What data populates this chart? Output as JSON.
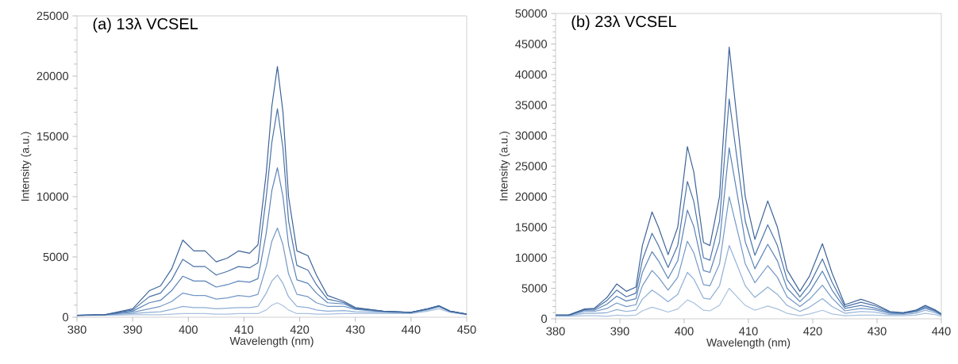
{
  "chart_data": [
    {
      "type": "line",
      "title": "(a) 13λ VCSEL",
      "xlabel": "Wavelength (nm)",
      "ylabel": "Intensity (a.u.)",
      "xlim": [
        380,
        450
      ],
      "ylim": [
        0,
        25000
      ],
      "xticks": [
        380,
        390,
        400,
        410,
        420,
        430,
        440,
        450
      ],
      "yticks": [
        0,
        5000,
        10000,
        15000,
        20000,
        25000
      ],
      "x": [
        380,
        385,
        390,
        393,
        395,
        397,
        399,
        401,
        403,
        405,
        407,
        409,
        411,
        412.5,
        414,
        415,
        416,
        417,
        418,
        419.5,
        421.5,
        423,
        425,
        428,
        430,
        435,
        440,
        443,
        445,
        447,
        450
      ],
      "series": [
        {
          "color": "#a9c1de",
          "values": [
            120,
            150,
            200,
            200,
            200,
            250,
            300,
            300,
            300,
            250,
            260,
            300,
            300,
            300,
            600,
            1000,
            1200,
            950,
            600,
            300,
            300,
            250,
            250,
            300,
            300,
            300,
            300,
            500,
            700,
            400,
            200
          ]
        },
        {
          "color": "#8eaed4",
          "values": [
            150,
            180,
            300,
            400,
            450,
            650,
            900,
            800,
            800,
            700,
            750,
            800,
            800,
            900,
            2000,
            3000,
            3500,
            2800,
            1700,
            900,
            800,
            600,
            500,
            550,
            450,
            400,
            350,
            600,
            850,
            450,
            230
          ]
        },
        {
          "color": "#7398c6",
          "values": [
            150,
            200,
            400,
            700,
            900,
            1300,
            2000,
            1800,
            1800,
            1500,
            1600,
            1800,
            1700,
            1900,
            4200,
            6300,
            7400,
            6000,
            3600,
            1900,
            1700,
            1200,
            900,
            900,
            650,
            450,
            380,
            650,
            900,
            480,
            250
          ]
        },
        {
          "color": "#5b84b8",
          "values": [
            150,
            200,
            500,
            1200,
            1400,
            2200,
            3400,
            3000,
            3000,
            2500,
            2700,
            3000,
            2900,
            3200,
            7000,
            10500,
            12400,
            10000,
            6000,
            3100,
            2800,
            2000,
            1200,
            1100,
            700,
            480,
            400,
            680,
            930,
            500,
            250
          ]
        },
        {
          "color": "#4a73a8",
          "values": [
            150,
            200,
            600,
            1700,
            2000,
            3100,
            4800,
            4200,
            4200,
            3500,
            3800,
            4200,
            4100,
            4500,
            10000,
            14500,
            17300,
            14000,
            8000,
            4300,
            3900,
            2700,
            1500,
            1200,
            750,
            500,
            400,
            700,
            950,
            500,
            250
          ]
        },
        {
          "color": "#3e6499",
          "values": [
            150,
            200,
            700,
            2200,
            2600,
            4000,
            6400,
            5500,
            5500,
            4600,
            4900,
            5500,
            5300,
            6000,
            12000,
            17500,
            20800,
            17000,
            10000,
            5500,
            5100,
            3500,
            1800,
            1300,
            800,
            500,
            400,
            700,
            950,
            500,
            250
          ]
        }
      ]
    },
    {
      "type": "line",
      "title": "(b) 23λ VCSEL",
      "xlabel": "Wavelength (nm)",
      "ylabel": "Intensity (a.u.)",
      "xlim": [
        380,
        440
      ],
      "ylim": [
        0,
        50000
      ],
      "xticks": [
        380,
        390,
        400,
        410,
        420,
        430,
        440
      ],
      "yticks": [
        0,
        5000,
        10000,
        15000,
        20000,
        25000,
        30000,
        35000,
        40000,
        45000,
        50000
      ],
      "x": [
        380,
        382,
        384.5,
        386,
        388,
        389.5,
        391,
        392.5,
        393.5,
        395,
        396,
        397.5,
        399,
        400.5,
        401.5,
        403,
        404,
        405.5,
        407,
        408.5,
        409.5,
        411,
        413,
        414.5,
        416,
        418,
        419.5,
        421.5,
        423,
        425,
        427.5,
        429.5,
        432,
        434,
        436,
        437.5,
        439,
        440
      ],
      "series": [
        {
          "color": "#a9c1de",
          "values": [
            400,
            400,
            500,
            500,
            400,
            600,
            500,
            600,
            1300,
            1900,
            1600,
            1100,
            1600,
            3100,
            2600,
            1400,
            1300,
            2200,
            5000,
            3300,
            2200,
            1400,
            2100,
            1600,
            900,
            500,
            800,
            1400,
            800,
            500,
            600,
            600,
            500,
            500,
            600,
            900,
            700,
            400
          ]
        },
        {
          "color": "#8eaed4",
          "values": [
            500,
            500,
            900,
            900,
            1000,
            1500,
            1200,
            1400,
            3200,
            4700,
            4000,
            2800,
            4000,
            7600,
            6500,
            3400,
            3200,
            5400,
            12000,
            8100,
            5400,
            3500,
            5200,
            4000,
            2200,
            1200,
            1900,
            3300,
            2000,
            900,
            1200,
            1100,
            700,
            700,
            900,
            1400,
            1000,
            600
          ]
        },
        {
          "color": "#7398c6",
          "values": [
            550,
            550,
            1200,
            1200,
            1700,
            2600,
            2000,
            2300,
            5400,
            7900,
            6800,
            4700,
            6800,
            12700,
            10800,
            5600,
            5400,
            9000,
            20000,
            13500,
            9000,
            5900,
            8700,
            6800,
            3600,
            2000,
            3200,
            5500,
            3400,
            1300,
            1700,
            1500,
            900,
            850,
            1100,
            1700,
            1200,
            650
          ]
        },
        {
          "color": "#5b84b8",
          "values": [
            600,
            600,
            1400,
            1400,
            2400,
            3700,
            2900,
            3300,
            7600,
            11000,
            9500,
            6600,
            9500,
            17800,
            15100,
            7900,
            7600,
            12600,
            28000,
            18900,
            12600,
            8200,
            12200,
            9500,
            5000,
            2800,
            4400,
            7800,
            4700,
            1700,
            2200,
            1800,
            1000,
            900,
            1200,
            1900,
            1300,
            700
          ]
        },
        {
          "color": "#4a73a8",
          "values": [
            600,
            600,
            1500,
            1600,
            3000,
            4700,
            3600,
            4200,
            9600,
            14000,
            12000,
            8400,
            12000,
            22500,
            19200,
            10000,
            9600,
            16000,
            36000,
            24000,
            16000,
            10400,
            15400,
            12000,
            6400,
            3600,
            5600,
            9800,
            6000,
            2000,
            2700,
            2200,
            1100,
            950,
            1300,
            2100,
            1400,
            750
          ]
        },
        {
          "color": "#3e6499",
          "values": [
            600,
            600,
            1600,
            1700,
            3500,
            5700,
            4500,
            5200,
            12000,
            17500,
            15000,
            10500,
            15000,
            28200,
            24000,
            12500,
            12000,
            20000,
            44500,
            30000,
            20000,
            13000,
            19300,
            15000,
            8000,
            4500,
            7000,
            12300,
            7500,
            2300,
            3200,
            2500,
            1200,
            1000,
            1400,
            2200,
            1500,
            800
          ]
        }
      ]
    }
  ]
}
